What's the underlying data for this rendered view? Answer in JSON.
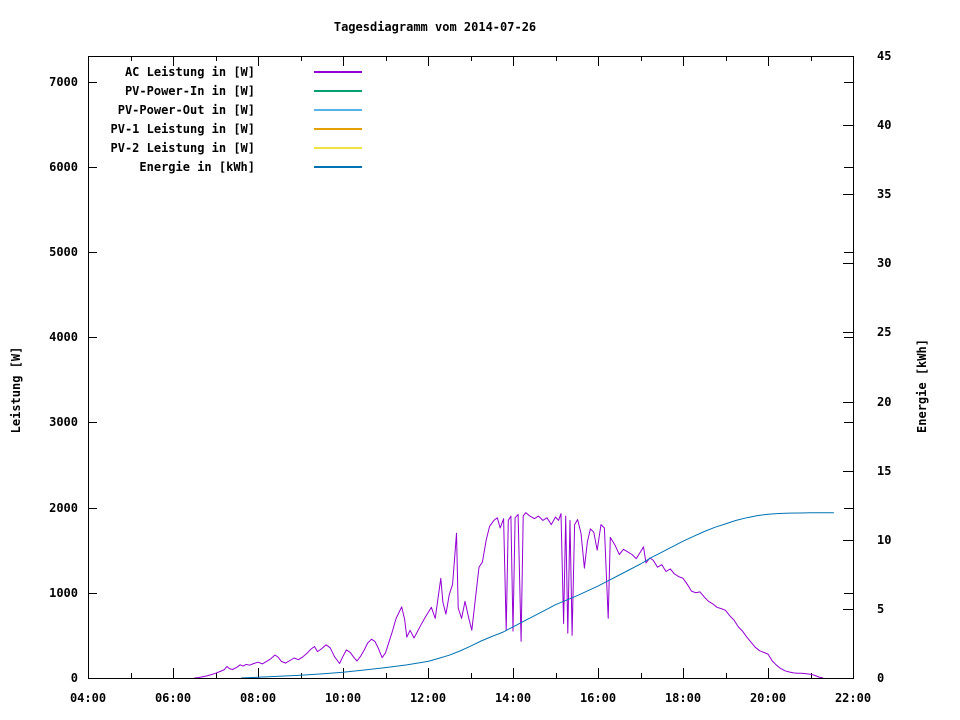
{
  "chart_data": {
    "type": "line",
    "title": "Tagesdiagramm vom 2014-07-26",
    "xlabel": "",
    "ylabel": "Leistung [W]",
    "y2label": "Energie [kWh]",
    "xlim_hours": [
      4,
      22
    ],
    "ylim": [
      0,
      7300
    ],
    "y2lim": [
      0,
      45
    ],
    "grid": false,
    "legend_position": "inside top-left, labels right-aligned with line samples",
    "x_ticks": [
      {
        "h": 4,
        "label": "04:00"
      },
      {
        "h": 6,
        "label": "06:00"
      },
      {
        "h": 8,
        "label": "08:00"
      },
      {
        "h": 10,
        "label": "10:00"
      },
      {
        "h": 12,
        "label": "12:00"
      },
      {
        "h": 14,
        "label": "14:00"
      },
      {
        "h": 16,
        "label": "16:00"
      },
      {
        "h": 18,
        "label": "18:00"
      },
      {
        "h": 20,
        "label": "20:00"
      },
      {
        "h": 22,
        "label": "22:00"
      }
    ],
    "x_minor_ticks_hours": [
      5,
      7,
      9,
      11,
      13,
      15,
      17,
      19,
      21
    ],
    "y_ticks": [
      {
        "v": 0,
        "label": "0"
      },
      {
        "v": 1000,
        "label": "1000"
      },
      {
        "v": 2000,
        "label": "2000"
      },
      {
        "v": 3000,
        "label": "3000"
      },
      {
        "v": 4000,
        "label": "4000"
      },
      {
        "v": 5000,
        "label": "5000"
      },
      {
        "v": 6000,
        "label": "6000"
      },
      {
        "v": 7000,
        "label": "7000"
      }
    ],
    "y2_ticks": [
      {
        "v": 0,
        "label": "0"
      },
      {
        "v": 5,
        "label": "5"
      },
      {
        "v": 10,
        "label": "10"
      },
      {
        "v": 15,
        "label": "15"
      },
      {
        "v": 20,
        "label": "20"
      },
      {
        "v": 25,
        "label": "25"
      },
      {
        "v": 30,
        "label": "30"
      },
      {
        "v": 35,
        "label": "35"
      },
      {
        "v": 40,
        "label": "40"
      },
      {
        "v": 45,
        "label": "45"
      }
    ],
    "series": [
      {
        "name": "AC Leistung in [W]",
        "color": "#9400d3",
        "axis": "y1",
        "points": [
          [
            6.5,
            0
          ],
          [
            6.6,
            5
          ],
          [
            6.7,
            15
          ],
          [
            6.8,
            25
          ],
          [
            6.9,
            40
          ],
          [
            7.0,
            55
          ],
          [
            7.1,
            75
          ],
          [
            7.2,
            95
          ],
          [
            7.27,
            135
          ],
          [
            7.33,
            110
          ],
          [
            7.4,
            100
          ],
          [
            7.5,
            125
          ],
          [
            7.58,
            155
          ],
          [
            7.65,
            140
          ],
          [
            7.72,
            160
          ],
          [
            7.8,
            150
          ],
          [
            7.9,
            170
          ],
          [
            8.0,
            185
          ],
          [
            8.1,
            165
          ],
          [
            8.2,
            195
          ],
          [
            8.3,
            225
          ],
          [
            8.4,
            270
          ],
          [
            8.47,
            245
          ],
          [
            8.55,
            195
          ],
          [
            8.65,
            175
          ],
          [
            8.75,
            205
          ],
          [
            8.85,
            235
          ],
          [
            8.95,
            215
          ],
          [
            9.05,
            245
          ],
          [
            9.15,
            290
          ],
          [
            9.25,
            340
          ],
          [
            9.33,
            370
          ],
          [
            9.4,
            310
          ],
          [
            9.5,
            345
          ],
          [
            9.6,
            390
          ],
          [
            9.7,
            355
          ],
          [
            9.8,
            250
          ],
          [
            9.92,
            170
          ],
          [
            10.0,
            255
          ],
          [
            10.08,
            330
          ],
          [
            10.17,
            300
          ],
          [
            10.25,
            245
          ],
          [
            10.33,
            200
          ],
          [
            10.42,
            260
          ],
          [
            10.5,
            330
          ],
          [
            10.58,
            410
          ],
          [
            10.67,
            455
          ],
          [
            10.75,
            430
          ],
          [
            10.83,
            350
          ],
          [
            10.92,
            240
          ],
          [
            11.0,
            295
          ],
          [
            11.08,
            420
          ],
          [
            11.17,
            560
          ],
          [
            11.25,
            700
          ],
          [
            11.38,
            835
          ],
          [
            11.45,
            690
          ],
          [
            11.5,
            480
          ],
          [
            11.58,
            560
          ],
          [
            11.67,
            470
          ],
          [
            11.75,
            545
          ],
          [
            11.83,
            620
          ],
          [
            11.92,
            700
          ],
          [
            12.0,
            765
          ],
          [
            12.08,
            830
          ],
          [
            12.17,
            700
          ],
          [
            12.3,
            1170
          ],
          [
            12.35,
            890
          ],
          [
            12.42,
            750
          ],
          [
            12.5,
            980
          ],
          [
            12.58,
            1100
          ],
          [
            12.67,
            1700
          ],
          [
            12.71,
            820
          ],
          [
            12.79,
            700
          ],
          [
            12.87,
            900
          ],
          [
            12.96,
            700
          ],
          [
            13.03,
            560
          ],
          [
            13.12,
            950
          ],
          [
            13.2,
            1300
          ],
          [
            13.28,
            1360
          ],
          [
            13.37,
            1620
          ],
          [
            13.45,
            1780
          ],
          [
            13.55,
            1850
          ],
          [
            13.63,
            1880
          ],
          [
            13.7,
            1760
          ],
          [
            13.78,
            1870
          ],
          [
            13.84,
            560
          ],
          [
            13.89,
            1850
          ],
          [
            13.95,
            1900
          ],
          [
            14.0,
            550
          ],
          [
            14.05,
            1880
          ],
          [
            14.12,
            1920
          ],
          [
            14.19,
            430
          ],
          [
            14.24,
            1900
          ],
          [
            14.3,
            1940
          ],
          [
            14.4,
            1900
          ],
          [
            14.5,
            1870
          ],
          [
            14.6,
            1900
          ],
          [
            14.7,
            1850
          ],
          [
            14.8,
            1880
          ],
          [
            14.9,
            1800
          ],
          [
            15.0,
            1890
          ],
          [
            15.07,
            1850
          ],
          [
            15.13,
            1930
          ],
          [
            15.19,
            640
          ],
          [
            15.24,
            1900
          ],
          [
            15.29,
            525
          ],
          [
            15.34,
            1850
          ],
          [
            15.39,
            500
          ],
          [
            15.45,
            1800
          ],
          [
            15.52,
            1860
          ],
          [
            15.6,
            1700
          ],
          [
            15.68,
            1290
          ],
          [
            15.75,
            1600
          ],
          [
            15.82,
            1750
          ],
          [
            15.9,
            1710
          ],
          [
            15.98,
            1500
          ],
          [
            16.07,
            1800
          ],
          [
            16.15,
            1760
          ],
          [
            16.24,
            700
          ],
          [
            16.29,
            1650
          ],
          [
            16.4,
            1560
          ],
          [
            16.5,
            1450
          ],
          [
            16.6,
            1510
          ],
          [
            16.7,
            1480
          ],
          [
            16.8,
            1450
          ],
          [
            16.9,
            1400
          ],
          [
            17.0,
            1480
          ],
          [
            17.07,
            1540
          ],
          [
            17.13,
            1350
          ],
          [
            17.22,
            1410
          ],
          [
            17.3,
            1380
          ],
          [
            17.4,
            1300
          ],
          [
            17.5,
            1330
          ],
          [
            17.6,
            1250
          ],
          [
            17.7,
            1280
          ],
          [
            17.8,
            1220
          ],
          [
            17.9,
            1190
          ],
          [
            18.0,
            1170
          ],
          [
            18.1,
            1100
          ],
          [
            18.2,
            1020
          ],
          [
            18.3,
            1000
          ],
          [
            18.4,
            1010
          ],
          [
            18.5,
            950
          ],
          [
            18.6,
            900
          ],
          [
            18.7,
            870
          ],
          [
            18.8,
            830
          ],
          [
            18.9,
            815
          ],
          [
            19.0,
            795
          ],
          [
            19.1,
            730
          ],
          [
            19.2,
            680
          ],
          [
            19.3,
            600
          ],
          [
            19.4,
            550
          ],
          [
            19.5,
            480
          ],
          [
            19.6,
            420
          ],
          [
            19.7,
            360
          ],
          [
            19.8,
            320
          ],
          [
            19.9,
            300
          ],
          [
            20.0,
            280
          ],
          [
            20.1,
            200
          ],
          [
            20.2,
            150
          ],
          [
            20.3,
            110
          ],
          [
            20.4,
            85
          ],
          [
            20.5,
            70
          ],
          [
            20.6,
            60
          ],
          [
            20.7,
            55
          ],
          [
            20.8,
            55
          ],
          [
            20.9,
            50
          ],
          [
            21.0,
            45
          ],
          [
            21.1,
            30
          ],
          [
            21.2,
            10
          ],
          [
            21.3,
            0
          ]
        ]
      },
      {
        "name": "PV-Power-In in [W]",
        "color": "#009e73",
        "axis": "y1",
        "points": []
      },
      {
        "name": "PV-Power-Out in [W]",
        "color": "#56b4e9",
        "axis": "y1",
        "points": []
      },
      {
        "name": "PV-1 Leistung in [W]",
        "color": "#e69f00",
        "axis": "y1",
        "points": []
      },
      {
        "name": "PV-2 Leistung in [W]",
        "color": "#f0e442",
        "axis": "y1",
        "points": []
      },
      {
        "name": "Energie in [kWh]",
        "color": "#0072b2",
        "axis": "y2",
        "points": [
          [
            7.6,
            0.0
          ],
          [
            8.0,
            0.05
          ],
          [
            8.5,
            0.12
          ],
          [
            9.0,
            0.2
          ],
          [
            9.5,
            0.3
          ],
          [
            10.0,
            0.42
          ],
          [
            10.5,
            0.58
          ],
          [
            11.0,
            0.75
          ],
          [
            11.5,
            0.95
          ],
          [
            12.0,
            1.2
          ],
          [
            12.25,
            1.42
          ],
          [
            12.5,
            1.65
          ],
          [
            12.75,
            1.95
          ],
          [
            13.0,
            2.3
          ],
          [
            13.25,
            2.68
          ],
          [
            13.5,
            3.0
          ],
          [
            13.75,
            3.3
          ],
          [
            14.0,
            3.7
          ],
          [
            14.25,
            4.1
          ],
          [
            14.5,
            4.5
          ],
          [
            14.75,
            4.9
          ],
          [
            15.0,
            5.3
          ],
          [
            15.25,
            5.62
          ],
          [
            15.5,
            5.95
          ],
          [
            15.75,
            6.3
          ],
          [
            16.0,
            6.65
          ],
          [
            16.25,
            7.05
          ],
          [
            16.5,
            7.45
          ],
          [
            16.75,
            7.85
          ],
          [
            17.0,
            8.25
          ],
          [
            17.25,
            8.7
          ],
          [
            17.5,
            9.1
          ],
          [
            17.75,
            9.5
          ],
          [
            18.0,
            9.9
          ],
          [
            18.25,
            10.25
          ],
          [
            18.5,
            10.6
          ],
          [
            18.75,
            10.9
          ],
          [
            19.0,
            11.15
          ],
          [
            19.25,
            11.4
          ],
          [
            19.5,
            11.6
          ],
          [
            19.75,
            11.75
          ],
          [
            20.0,
            11.85
          ],
          [
            20.25,
            11.9
          ],
          [
            20.5,
            11.93
          ],
          [
            20.75,
            11.94
          ],
          [
            21.0,
            11.95
          ],
          [
            21.25,
            11.95
          ],
          [
            21.55,
            11.95
          ]
        ]
      }
    ],
    "colors": {
      "axis": "#000000",
      "background": "#ffffff",
      "text": "#000000"
    }
  }
}
